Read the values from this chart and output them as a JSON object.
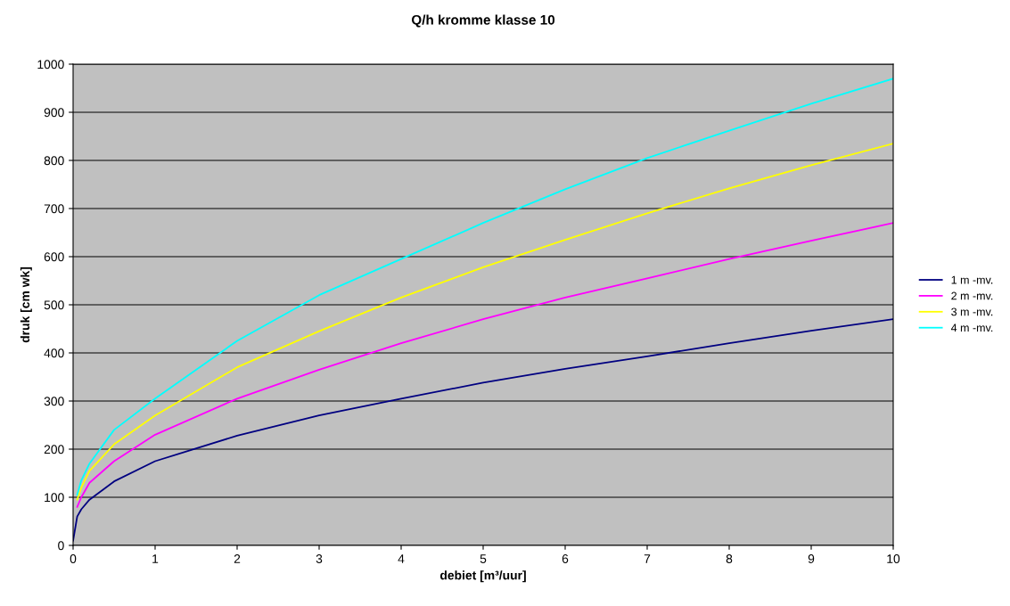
{
  "chart_data": {
    "type": "line",
    "title": "Q/h kromme klasse 10",
    "xlabel": "debiet [m³/uur]",
    "ylabel": "druk [cm wk]",
    "x": [
      0,
      0.05,
      0.1,
      0.2,
      0.5,
      1,
      2,
      3,
      4,
      5,
      6,
      7,
      8,
      9,
      10
    ],
    "series": [
      {
        "name": "1 m -mv.",
        "color": "#000080",
        "values": [
          10,
          60,
          75,
          95,
          133,
          175,
          228,
          270,
          305,
          338,
          367,
          393,
          420,
          446,
          470
        ]
      },
      {
        "name": "2 m -mv.",
        "color": "#ff00ff",
        "values": [
          null,
          80,
          100,
          130,
          175,
          230,
          305,
          365,
          420,
          470,
          515,
          555,
          595,
          633,
          670
        ]
      },
      {
        "name": "3 m -mv.",
        "color": "#ffff00",
        "values": [
          null,
          95,
          120,
          155,
          210,
          270,
          370,
          445,
          515,
          578,
          635,
          690,
          742,
          790,
          835
        ]
      },
      {
        "name": "4 m -mv.",
        "color": "#00ffff",
        "values": [
          null,
          105,
          135,
          170,
          240,
          305,
          425,
          520,
          595,
          670,
          740,
          805,
          862,
          918,
          970
        ]
      }
    ],
    "xlim": [
      0,
      10
    ],
    "xticks": [
      0,
      1,
      2,
      3,
      4,
      5,
      6,
      7,
      8,
      9,
      10
    ],
    "ylim": [
      0,
      1000
    ],
    "yticks": [
      0,
      100,
      200,
      300,
      400,
      500,
      600,
      700,
      800,
      900,
      1000
    ],
    "grid": "y",
    "legend": "right",
    "marker": "none",
    "line_style": "solid"
  }
}
